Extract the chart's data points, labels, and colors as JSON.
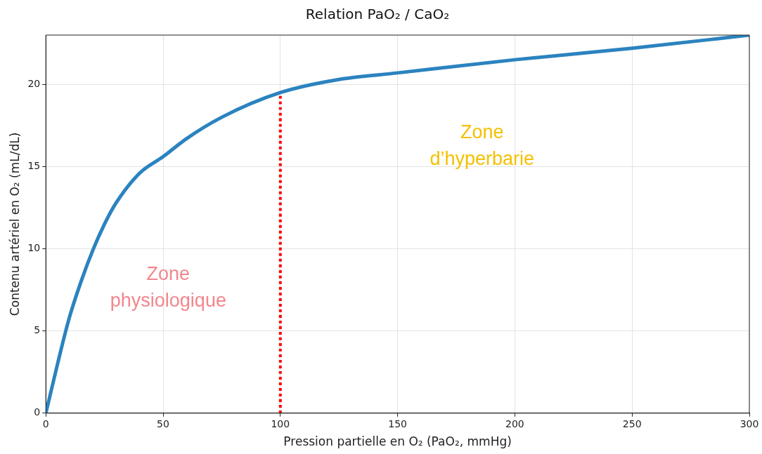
{
  "chart_data": {
    "type": "line",
    "title": "Relation PaO₂ / CaO₂",
    "xlabel": "Pression partielle en O₂ (PaO₂, mmHg)",
    "ylabel": "Contenu artériel en O₂ (mL/dL)",
    "series": [
      {
        "color": "#2b83bf",
        "x": [
          0,
          5,
          10,
          15,
          20,
          25,
          30,
          40,
          50,
          60,
          75,
          100,
          125,
          150,
          200,
          250,
          300
        ],
        "values": [
          0,
          3.0,
          5.8,
          8.0,
          9.9,
          11.5,
          12.8,
          14.6,
          15.6,
          16.7,
          18.0,
          19.5,
          20.3,
          20.7,
          21.5,
          22.2,
          23
        ],
        "line_style": "solid"
      },
      {
        "color": "#ff0000",
        "x": [
          100,
          100
        ],
        "values": [
          0,
          19.5
        ],
        "line_style": "dotted"
      }
    ],
    "xlim": [
      0,
      300
    ],
    "ylim": [
      0,
      23
    ],
    "xticks": [
      0,
      50,
      100,
      150,
      200,
      250,
      300
    ],
    "yticks": [
      0,
      5,
      10,
      15,
      20
    ],
    "grid": true,
    "legend": false,
    "marker": "none",
    "annotations": [
      "Zone\nphysiologique",
      "Zone\nd’hyperbarie"
    ]
  }
}
